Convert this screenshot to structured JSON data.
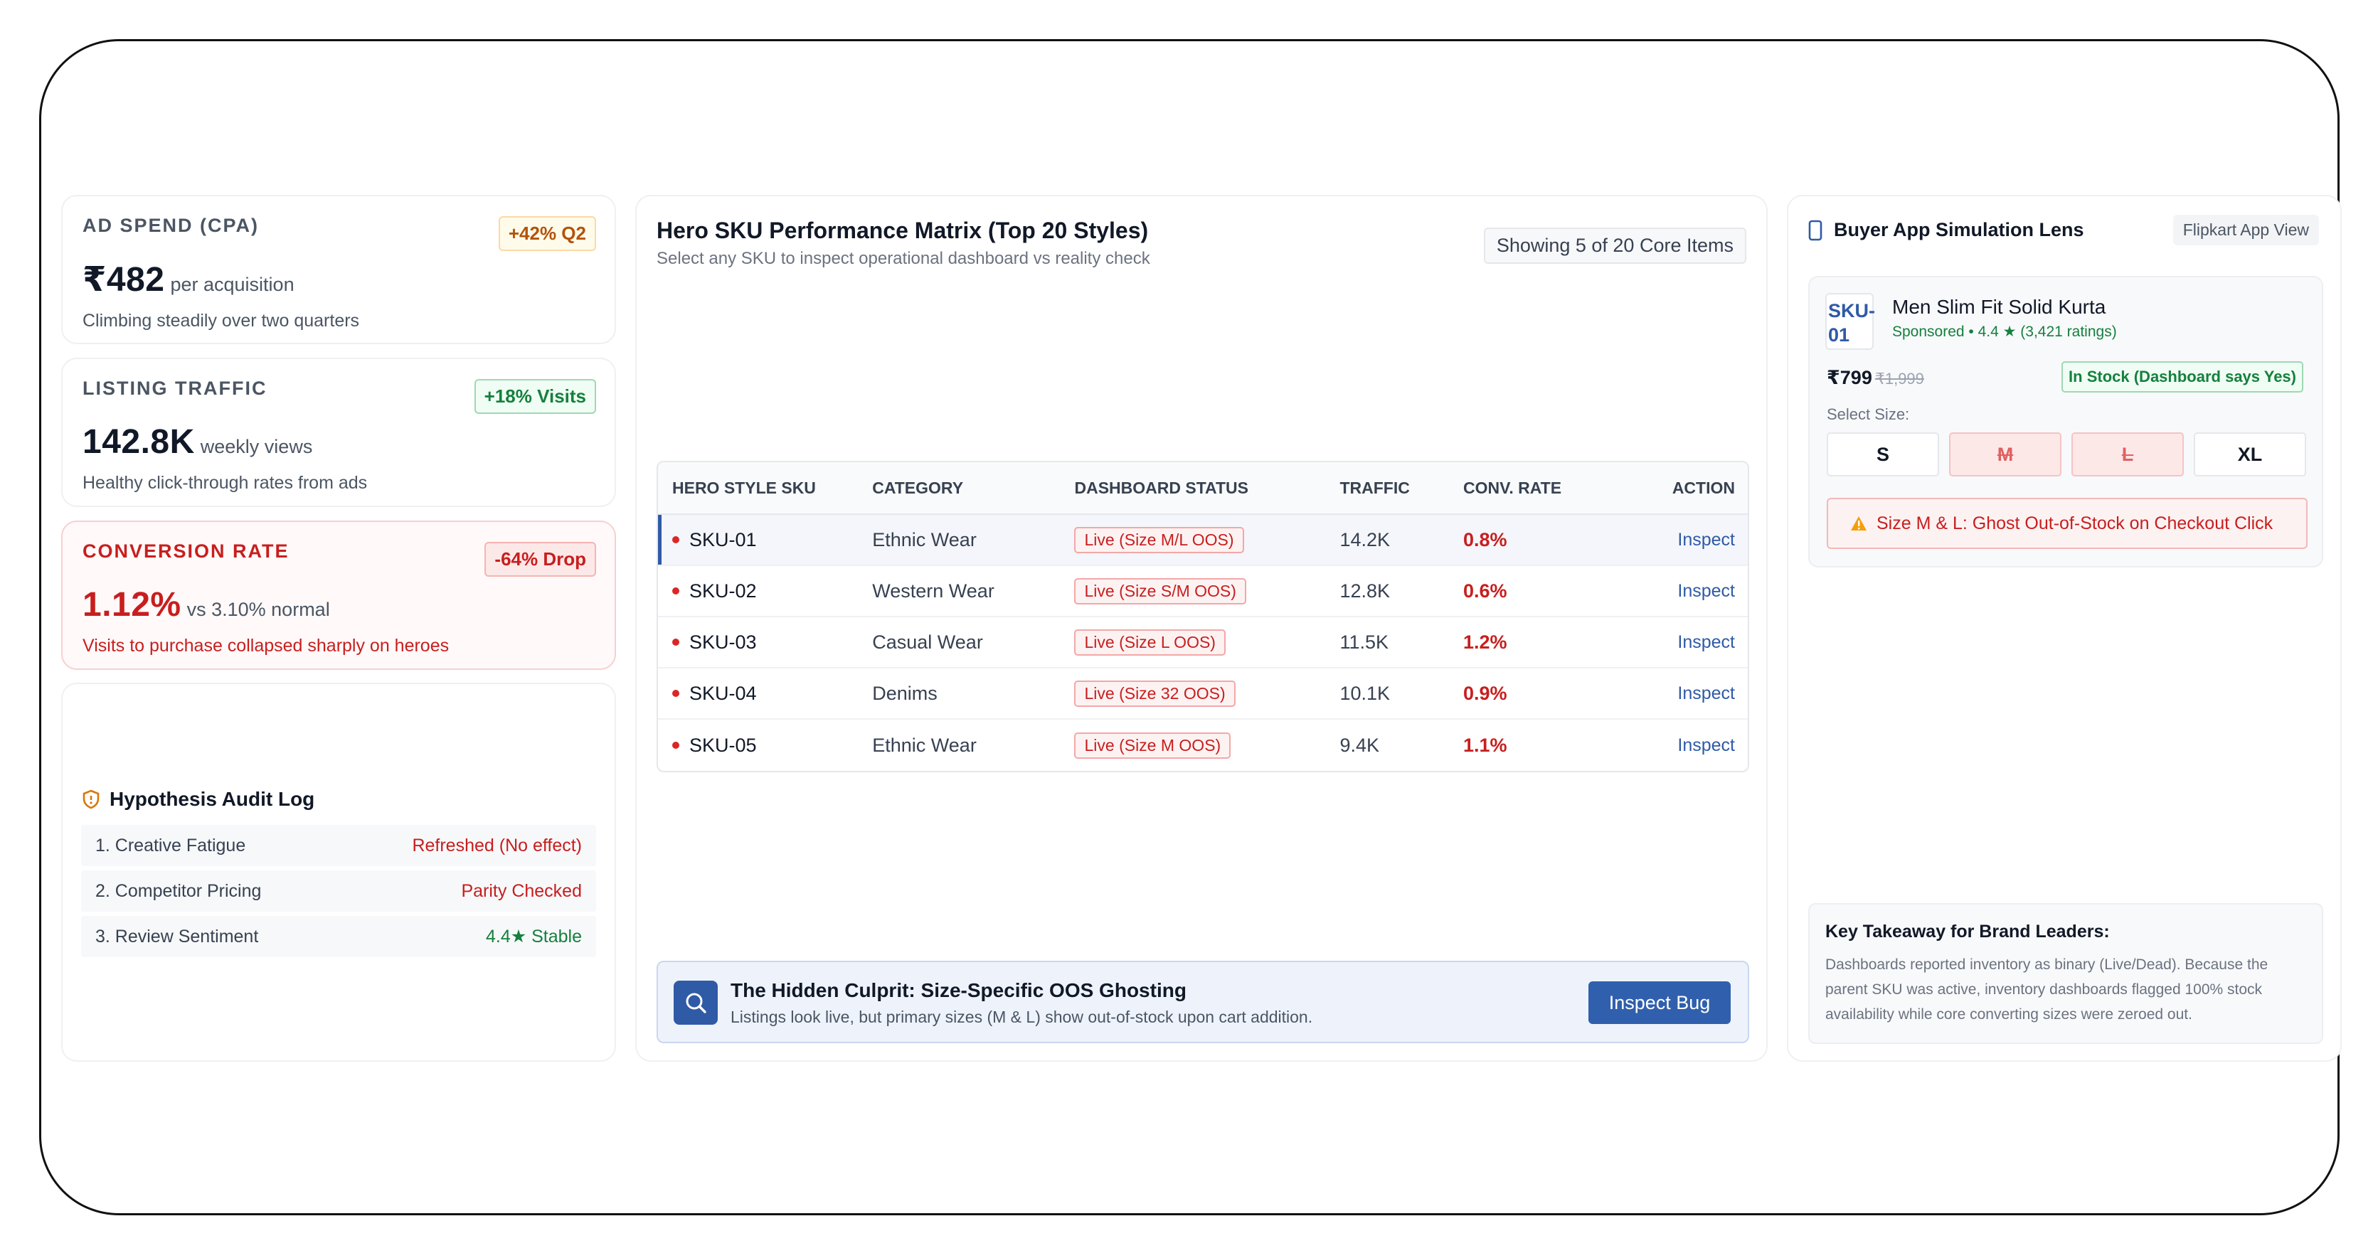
{
  "kpis": [
    {
      "label": "AD SPEND (CPA)",
      "badge": "+42% Q2",
      "value": "₹482",
      "unit": "per acquisition",
      "desc": "Climbing steadily over two quarters"
    },
    {
      "label": "LISTING TRAFFIC",
      "badge": "+18% Visits",
      "value": "142.8K",
      "unit": "weekly views",
      "desc": "Healthy click-through rates from ads"
    },
    {
      "label": "CONVERSION RATE",
      "badge": "-64% Drop",
      "value": "1.12%",
      "unit": "vs 3.10% normal",
      "desc": "Visits to purchase collapsed sharply on heroes"
    }
  ],
  "audit": {
    "title": "Hypothesis Audit Log",
    "rows": [
      {
        "label": "1. Creative Fatigue",
        "value": "Refreshed (No effect)"
      },
      {
        "label": "2. Competitor Pricing",
        "value": "Parity Checked"
      },
      {
        "label": "3. Review Sentiment",
        "value": "4.4★ Stable"
      }
    ]
  },
  "matrix": {
    "title": "Hero SKU Performance Matrix (Top 20 Styles)",
    "subtitle": "Select any SKU to inspect operational dashboard vs reality check",
    "showing": "Showing 5 of 20 Core Items",
    "headers": [
      "HERO STYLE SKU",
      "CATEGORY",
      "DASHBOARD STATUS",
      "TRAFFIC",
      "CONV. RATE",
      "ACTION"
    ],
    "rows": [
      {
        "sku": "SKU-01",
        "category": "Ethnic Wear",
        "status": "Live (Size M/L OOS)",
        "traffic": "14.2K",
        "conv": "0.8%",
        "action": "Inspect"
      },
      {
        "sku": "SKU-02",
        "category": "Western Wear",
        "status": "Live (Size S/M OOS)",
        "traffic": "12.8K",
        "conv": "0.6%",
        "action": "Inspect"
      },
      {
        "sku": "SKU-03",
        "category": "Casual Wear",
        "status": "Live (Size L OOS)",
        "traffic": "11.5K",
        "conv": "1.2%",
        "action": "Inspect"
      },
      {
        "sku": "SKU-04",
        "category": "Denims",
        "status": "Live (Size 32 OOS)",
        "traffic": "10.1K",
        "conv": "0.9%",
        "action": "Inspect"
      },
      {
        "sku": "SKU-05",
        "category": "Ethnic Wear",
        "status": "Live (Size M OOS)",
        "traffic": "9.4K",
        "conv": "1.1%",
        "action": "Inspect"
      }
    ]
  },
  "culprit": {
    "title": "The Hidden Culprit: Size-Specific OOS Ghosting",
    "desc": "Listings look live, but primary sizes (M & L) show out-of-stock upon cart addition.",
    "button": "Inspect Bug"
  },
  "lens": {
    "title": "Buyer App Simulation Lens",
    "view": "Flipkart App View",
    "sku_line1": "SKU-",
    "sku_line2": "01",
    "product": "Men Slim Fit Solid Kurta",
    "meta": "Sponsored • 4.4 ★ (3,421 ratings)",
    "price": "₹799",
    "mrp": "₹1,999",
    "stock": "In Stock (Dashboard says Yes)",
    "size_label": "Select Size:",
    "sizes": [
      "S",
      "M",
      "L",
      "XL"
    ],
    "ghost": "Size M & L: Ghost Out-of-Stock on Checkout Click",
    "takeaway_title": "Key Takeaway for Brand Leaders:",
    "takeaway_text": "Dashboards reported inventory as binary (Live/Dead). Because the parent SKU was active, inventory dashboards flagged 100% stock availability while core converting sizes were zeroed out."
  },
  "colors": {
    "accent": "#2f5aa6",
    "danger": "#c81e1e",
    "success": "#15803d",
    "warning": "#b45309"
  }
}
